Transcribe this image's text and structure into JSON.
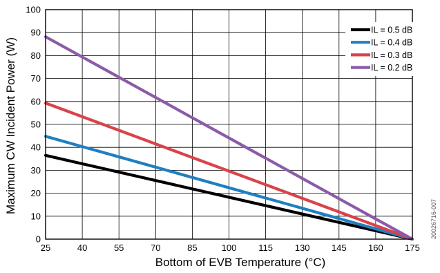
{
  "chart_data": {
    "type": "line",
    "title": "",
    "xlabel": "Bottom of EVB Temperature (°C)",
    "ylabel": "Maximum CW Incident Power (W)",
    "xlim": [
      25,
      175
    ],
    "ylim": [
      0,
      100
    ],
    "xticks": [
      25,
      40,
      55,
      70,
      85,
      100,
      115,
      130,
      145,
      160,
      175
    ],
    "yticks": [
      0,
      10,
      20,
      30,
      40,
      50,
      60,
      70,
      80,
      90,
      100
    ],
    "grid": true,
    "legend_position": "top-right",
    "series": [
      {
        "name": "IL = 0.5 dB",
        "color": "#000000",
        "x": [
          25,
          175
        ],
        "y": [
          36.5,
          0
        ]
      },
      {
        "name": "IL = 0.4 dB",
        "color": "#1f7fc1",
        "x": [
          25,
          175
        ],
        "y": [
          44.8,
          0
        ]
      },
      {
        "name": "IL = 0.3 dB",
        "color": "#d9434a",
        "x": [
          25,
          175
        ],
        "y": [
          59.3,
          0
        ]
      },
      {
        "name": "IL = 0.2 dB",
        "color": "#8c5ba8",
        "x": [
          25,
          175
        ],
        "y": [
          88.2,
          0
        ]
      }
    ],
    "watermark": "20026716-007"
  }
}
